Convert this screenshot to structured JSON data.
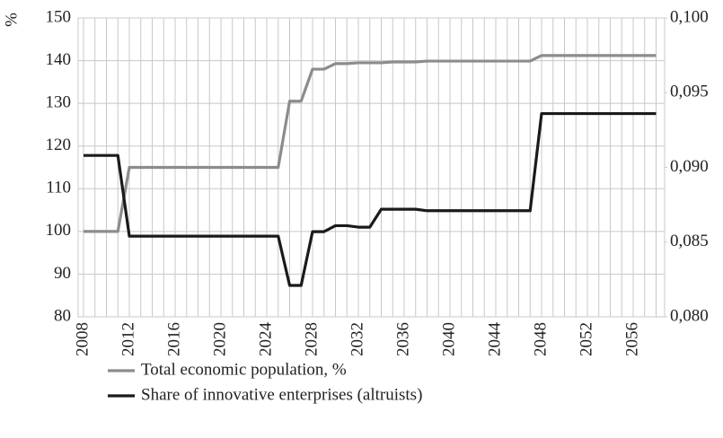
{
  "chart_data": {
    "type": "line",
    "ylabel": "%",
    "categories": [
      "2008",
      null,
      null,
      null,
      "2012",
      null,
      null,
      null,
      "2016",
      null,
      null,
      null,
      "2020",
      null,
      null,
      null,
      "2024",
      null,
      null,
      null,
      "2028",
      null,
      null,
      null,
      "2032",
      null,
      null,
      null,
      "2036",
      null,
      null,
      null,
      "2040",
      null,
      null,
      null,
      "2044",
      null,
      null,
      null,
      "2048",
      null,
      null,
      null,
      "2052",
      null,
      null,
      null,
      "2056",
      null,
      null
    ],
    "series": [
      {
        "name": "Total economic population, %",
        "color": "#8c8c8c",
        "values": [
          100,
          100,
          100,
          100,
          115,
          115,
          115,
          115,
          115,
          115,
          115,
          115,
          115,
          115,
          115,
          115,
          115,
          115,
          130.5,
          130.5,
          138,
          138,
          139.3,
          139.3,
          139.5,
          139.5,
          139.5,
          139.7,
          139.7,
          139.7,
          139.9,
          139.9,
          139.9,
          139.9,
          139.9,
          139.9,
          139.9,
          139.9,
          139.9,
          139.9,
          141.2,
          141.2,
          141.2,
          141.2,
          141.2,
          141.2,
          141.2,
          141.2,
          141.2,
          141.2,
          141.2
        ]
      },
      {
        "name": "Share of innovative enterprises (altruists)",
        "color": "#1a1a1a",
        "axis": "y2",
        "values": [
          0.0908,
          0.0908,
          0.0908,
          0.0908,
          0.0854,
          0.0854,
          0.0854,
          0.0854,
          0.0854,
          0.0854,
          0.0854,
          0.0854,
          0.0854,
          0.0854,
          0.0854,
          0.0854,
          0.0854,
          0.0854,
          0.0821,
          0.0821,
          0.0857,
          0.0857,
          0.0861,
          0.0861,
          0.086,
          0.086,
          0.0872,
          0.0872,
          0.0872,
          0.0872,
          0.0871,
          0.0871,
          0.0871,
          0.0871,
          0.0871,
          0.0871,
          0.0871,
          0.0871,
          0.0871,
          0.0871,
          0.0936,
          0.0936,
          0.0936,
          0.0936,
          0.0936,
          0.0936,
          0.0936,
          0.0936,
          0.0936,
          0.0936,
          0.0936
        ]
      }
    ],
    "ylim": [
      80,
      150
    ],
    "yticks": [
      80,
      90,
      100,
      110,
      120,
      130,
      140,
      150
    ],
    "y2lim": [
      0.08,
      0.1
    ],
    "y2ticks": [
      {
        "value": 0.08,
        "label": "0,080"
      },
      {
        "value": 0.085,
        "label": "0,085"
      },
      {
        "value": 0.09,
        "label": "0,090"
      },
      {
        "value": 0.095,
        "label": "0,095"
      },
      {
        "value": 0.1,
        "label": "0,100"
      }
    ],
    "grid": true
  }
}
